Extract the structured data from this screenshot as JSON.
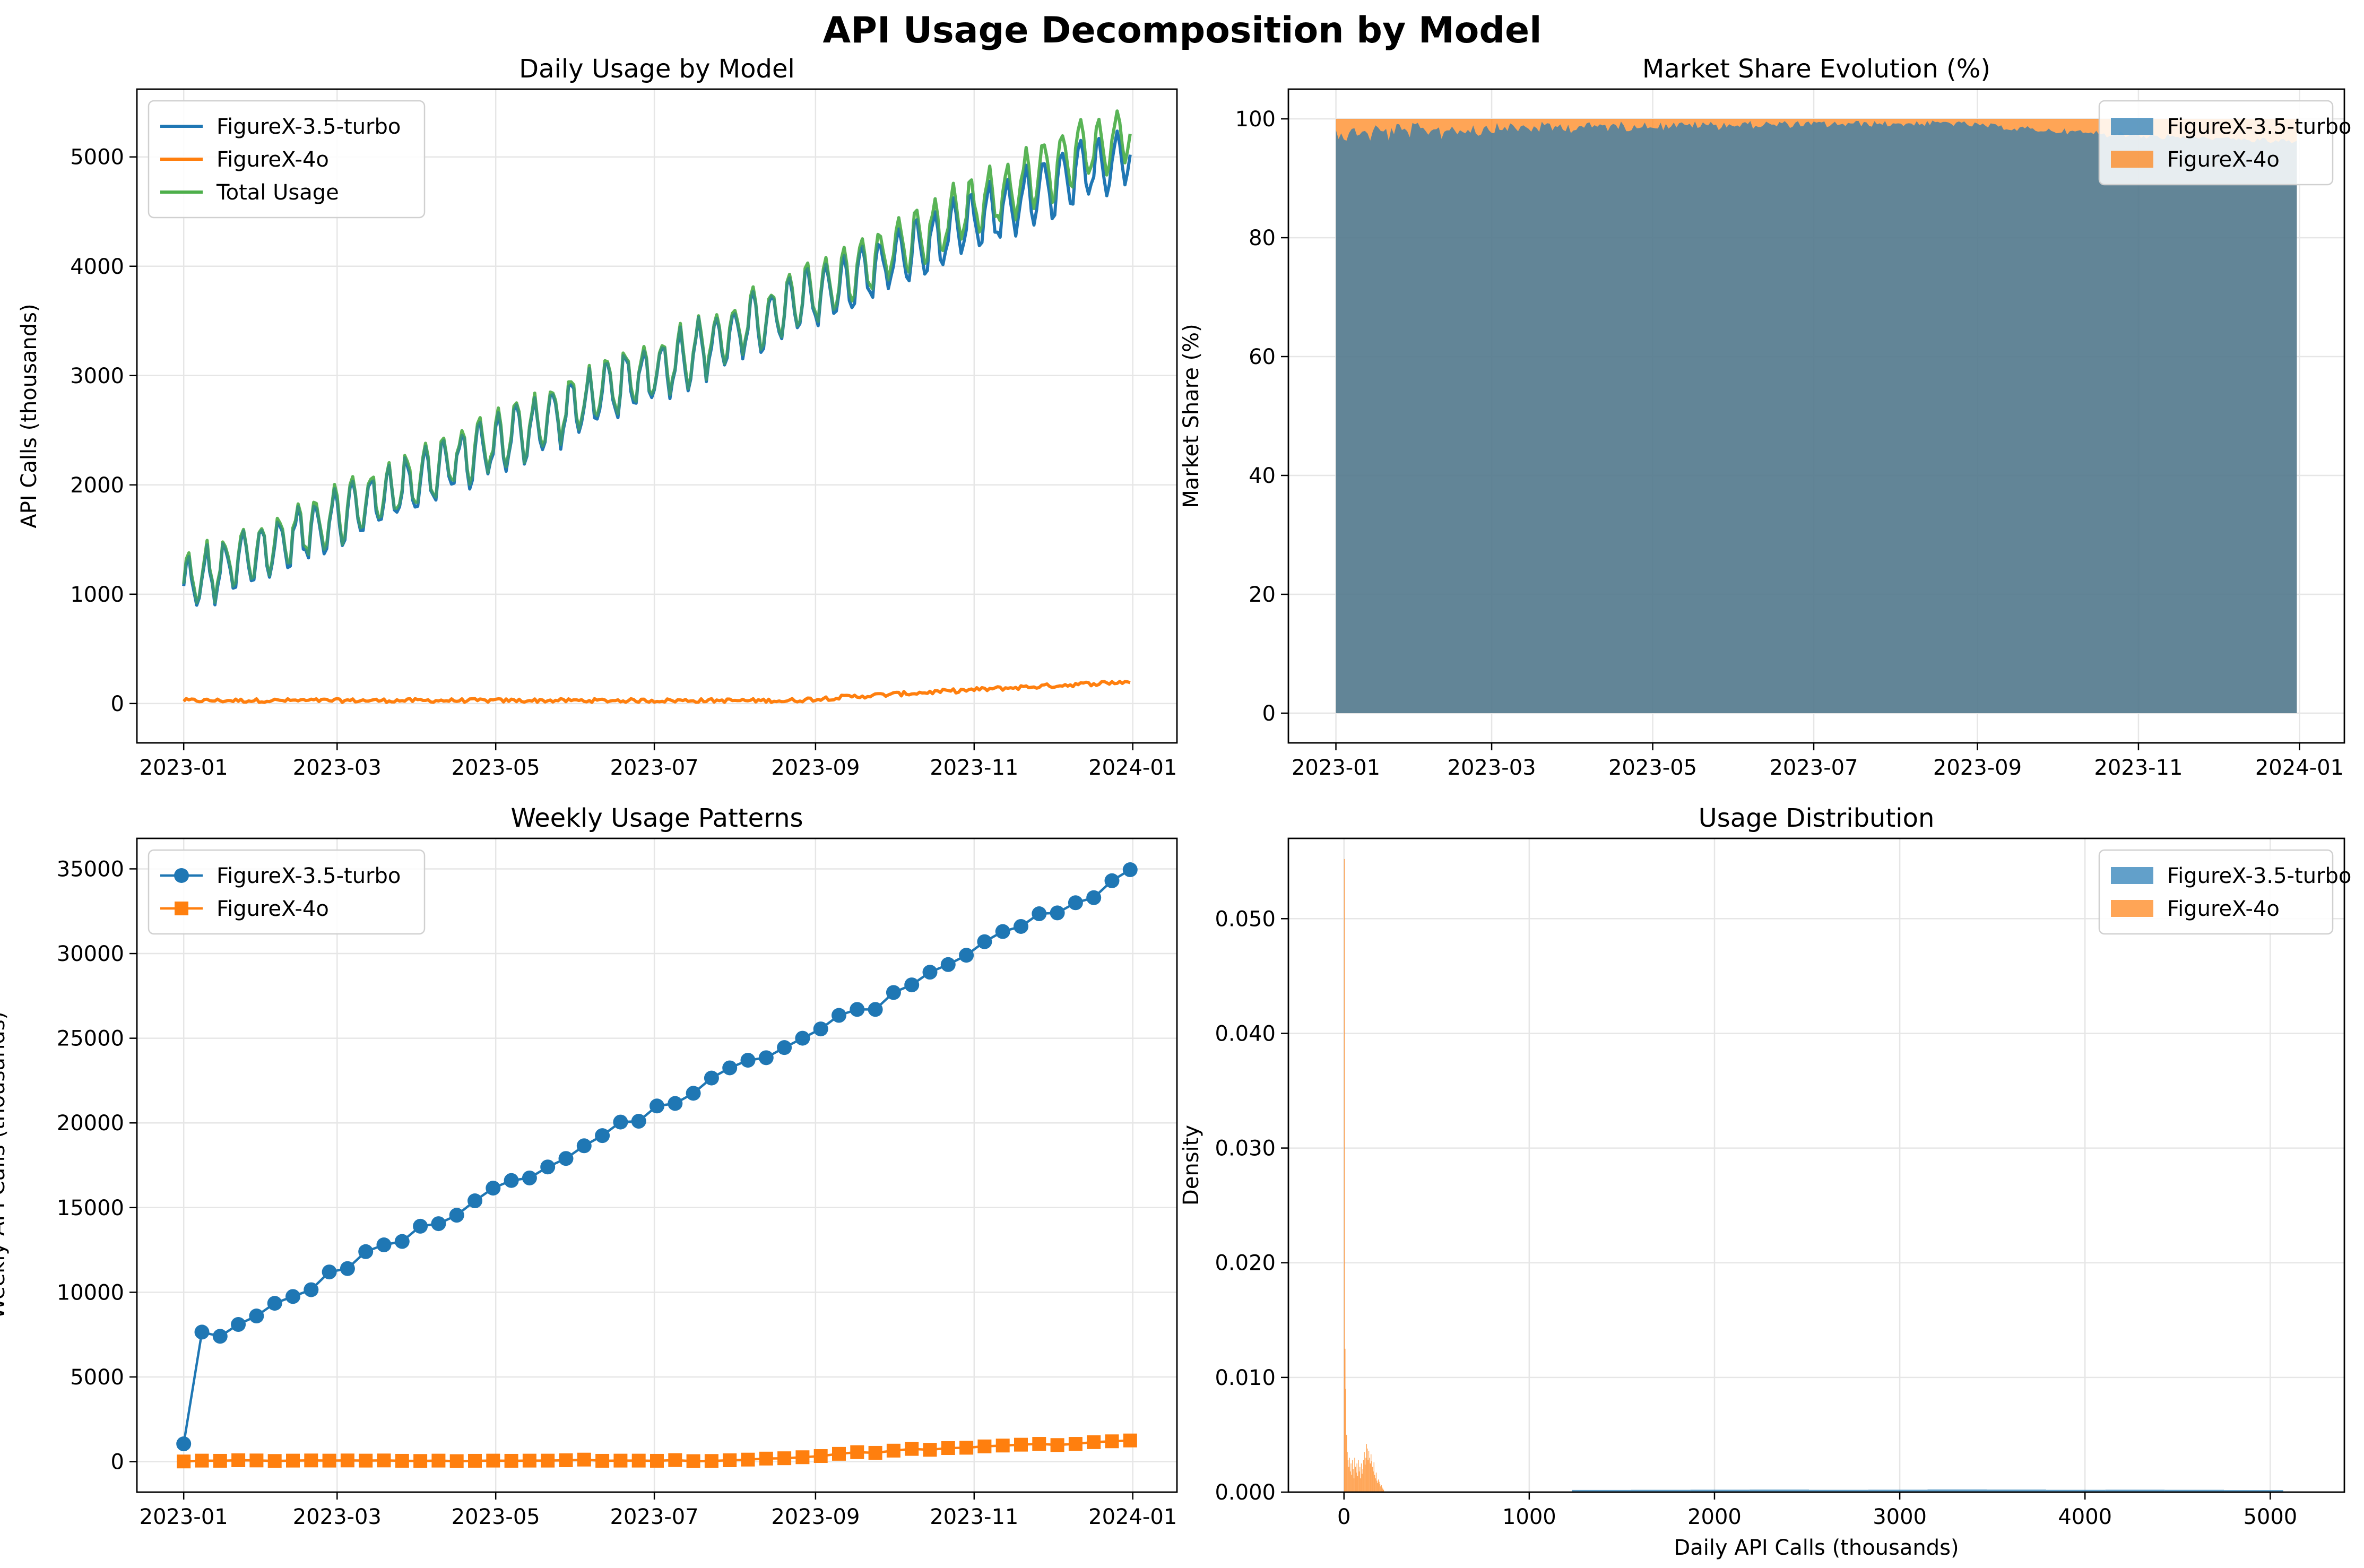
{
  "figure": {
    "title": "API Usage Decomposition by Model"
  },
  "colors": {
    "turbo": "#1f77b4",
    "fourO": "#ff7f0e",
    "total": "#4daf4a",
    "grid": "#e6e6e6"
  },
  "chart_data": [
    {
      "id": "daily",
      "type": "line",
      "title": "Daily Usage by Model",
      "xlabel": "",
      "ylabel": "API Calls (thousands)",
      "x_range": [
        "2022-12-14",
        "2024-01-18"
      ],
      "ylim": [
        -360,
        5620
      ],
      "x_ticks": [
        "2023-01",
        "2023-03",
        "2023-05",
        "2023-07",
        "2023-09",
        "2023-11",
        "2024-01"
      ],
      "y_ticks": [
        0,
        1000,
        2000,
        3000,
        4000,
        5000
      ],
      "legend_position": "upper-left",
      "grid": true,
      "series_summary": [
        {
          "name": "FigureX-3.5-turbo",
          "start": 1050,
          "end": 5050,
          "weekly_amplitude": 250
        },
        {
          "name": "FigureX-4o",
          "start": 10,
          "end": 200
        },
        {
          "name": "Total Usage",
          "start": 1060,
          "end": 5250
        }
      ],
      "legend": [
        "FigureX-3.5-turbo",
        "FigureX-4o",
        "Total Usage"
      ]
    },
    {
      "id": "share",
      "type": "area",
      "title": "Market Share Evolution (%)",
      "xlabel": "",
      "ylabel": "Market Share (%)",
      "x_range": [
        "2022-12-14",
        "2024-01-18"
      ],
      "ylim": [
        -5,
        105
      ],
      "x_ticks": [
        "2023-01",
        "2023-03",
        "2023-05",
        "2023-07",
        "2023-09",
        "2023-11",
        "2024-01"
      ],
      "y_ticks": [
        0,
        20,
        40,
        60,
        80,
        100
      ],
      "legend_position": "upper-right",
      "grid": true,
      "series_summary": [
        {
          "name": "FigureX-3.5-turbo",
          "start_share": 99.5,
          "end_share": 96
        },
        {
          "name": "FigureX-4o",
          "start_share": 0.5,
          "end_share": 4
        }
      ],
      "legend": [
        "FigureX-3.5-turbo",
        "FigureX-4o"
      ]
    },
    {
      "id": "weekly",
      "type": "line",
      "title": "Weekly Usage Patterns",
      "xlabel": "",
      "ylabel": "Weekly API Calls (thousands)",
      "x_range": [
        "2022-12-14",
        "2024-01-18"
      ],
      "ylim": [
        -1800,
        36800
      ],
      "x_ticks": [
        "2023-01",
        "2023-03",
        "2023-05",
        "2023-07",
        "2023-09",
        "2023-11",
        "2024-01"
      ],
      "y_ticks": [
        0,
        5000,
        10000,
        15000,
        20000,
        25000,
        30000,
        35000
      ],
      "legend_position": "upper-left",
      "grid": true,
      "x_dates": [
        "2023-01-01",
        "2023-01-08",
        "2023-01-15",
        "2023-01-22",
        "2023-01-29",
        "2023-02-05",
        "2023-02-12",
        "2023-02-19",
        "2023-02-26",
        "2023-03-05",
        "2023-03-12",
        "2023-03-19",
        "2023-03-26",
        "2023-04-02",
        "2023-04-09",
        "2023-04-16",
        "2023-04-23",
        "2023-04-30",
        "2023-05-07",
        "2023-05-14",
        "2023-05-21",
        "2023-05-28",
        "2023-06-04",
        "2023-06-11",
        "2023-06-18",
        "2023-06-25",
        "2023-07-02",
        "2023-07-09",
        "2023-07-16",
        "2023-07-23",
        "2023-07-30",
        "2023-08-06",
        "2023-08-13",
        "2023-08-20",
        "2023-08-27",
        "2023-09-03",
        "2023-09-10",
        "2023-09-17",
        "2023-09-24",
        "2023-10-01",
        "2023-10-08",
        "2023-10-15",
        "2023-10-22",
        "2023-10-29",
        "2023-11-05",
        "2023-11-12",
        "2023-11-19",
        "2023-11-26",
        "2023-12-03",
        "2023-12-10",
        "2023-12-17",
        "2023-12-24",
        "2023-12-31"
      ],
      "series": [
        {
          "name": "FigureX-3.5-turbo",
          "marker": "circle",
          "values": [
            1050,
            7650,
            7400,
            8100,
            8600,
            9350,
            9750,
            10150,
            11200,
            11400,
            12400,
            12800,
            13000,
            13900,
            14050,
            14550,
            15400,
            16150,
            16600,
            16750,
            17400,
            17900,
            18650,
            19250,
            20050,
            20100,
            21000,
            21150,
            21750,
            22650,
            23250,
            23700,
            23850,
            24450,
            25000,
            25550,
            26350,
            26700,
            26700,
            27700,
            28150,
            28900,
            29350,
            29900,
            30700,
            31300,
            31600,
            32350,
            32400,
            33000,
            33300,
            34300,
            34950
          ]
        },
        {
          "name": "FigureX-4o",
          "marker": "square",
          "values": [
            10,
            60,
            50,
            80,
            70,
            40,
            60,
            70,
            60,
            70,
            60,
            70,
            50,
            40,
            60,
            30,
            50,
            60,
            50,
            60,
            60,
            80,
            120,
            50,
            60,
            60,
            50,
            90,
            30,
            40,
            80,
            120,
            180,
            200,
            260,
            330,
            460,
            560,
            520,
            650,
            750,
            700,
            800,
            820,
            900,
            950,
            1000,
            1050,
            980,
            1050,
            1150,
            1200,
            1250
          ]
        }
      ],
      "legend": [
        "FigureX-3.5-turbo",
        "FigureX-4o"
      ]
    },
    {
      "id": "hist",
      "type": "bar",
      "title": "Usage Distribution",
      "xlabel": "Daily API Calls (thousands)",
      "ylabel": "Density",
      "xlim": [
        -300,
        5400
      ],
      "ylim": [
        0,
        0.057
      ],
      "x_ticks": [
        0,
        1000,
        2000,
        3000,
        4000,
        5000
      ],
      "y_ticks": [
        "0.000",
        "0.010",
        "0.020",
        "0.030",
        "0.040",
        "0.050"
      ],
      "legend_position": "upper-right",
      "grid": true,
      "series": [
        {
          "name": "FigureX-3.5-turbo",
          "bin_edges": [
            1230,
            1550,
            1870,
            2190,
            2510,
            2830,
            3150,
            3470,
            3790,
            4110,
            4430,
            4750,
            5070
          ],
          "density": [
            0.00019,
            0.0002,
            0.00021,
            0.00022,
            0.0002,
            0.00021,
            0.00023,
            0.00022,
            0.0002,
            0.00021,
            0.0002,
            0.00018
          ]
        },
        {
          "name": "FigureX-4o",
          "bin_edges": [
            0,
            4,
            8,
            12,
            16,
            20,
            24,
            28,
            32,
            36,
            40,
            44,
            48,
            52,
            56,
            60,
            64,
            68,
            72,
            76,
            80,
            84,
            88,
            92,
            96,
            100,
            104,
            108,
            112,
            116,
            120,
            124,
            128,
            132,
            136,
            140,
            144,
            148,
            152,
            156,
            160,
            164,
            168,
            172,
            176,
            180,
            184,
            188,
            192,
            196,
            200,
            204,
            208,
            212,
            216
          ],
          "density": [
            0.0552,
            0.0125,
            0.009,
            0.005,
            0.0035,
            0.0028,
            0.0022,
            0.003,
            0.0018,
            0.0025,
            0.0015,
            0.0028,
            0.002,
            0.0012,
            0.003,
            0.0022,
            0.0017,
            0.0025,
            0.0014,
            0.0028,
            0.0018,
            0.0022,
            0.0012,
            0.0025,
            0.0016,
            0.002,
            0.0028,
            0.0035,
            0.0024,
            0.003,
            0.0042,
            0.0038,
            0.0028,
            0.0036,
            0.003,
            0.0025,
            0.0033,
            0.0027,
            0.0022,
            0.0018,
            0.0026,
            0.0015,
            0.0012,
            0.0017,
            0.001,
            0.0008,
            0.0011,
            0.0009,
            0.0007,
            0.0005,
            0.0006,
            0.0004,
            0.0003,
            0.0002
          ]
        }
      ],
      "legend": [
        "FigureX-3.5-turbo",
        "FigureX-4o"
      ]
    }
  ]
}
